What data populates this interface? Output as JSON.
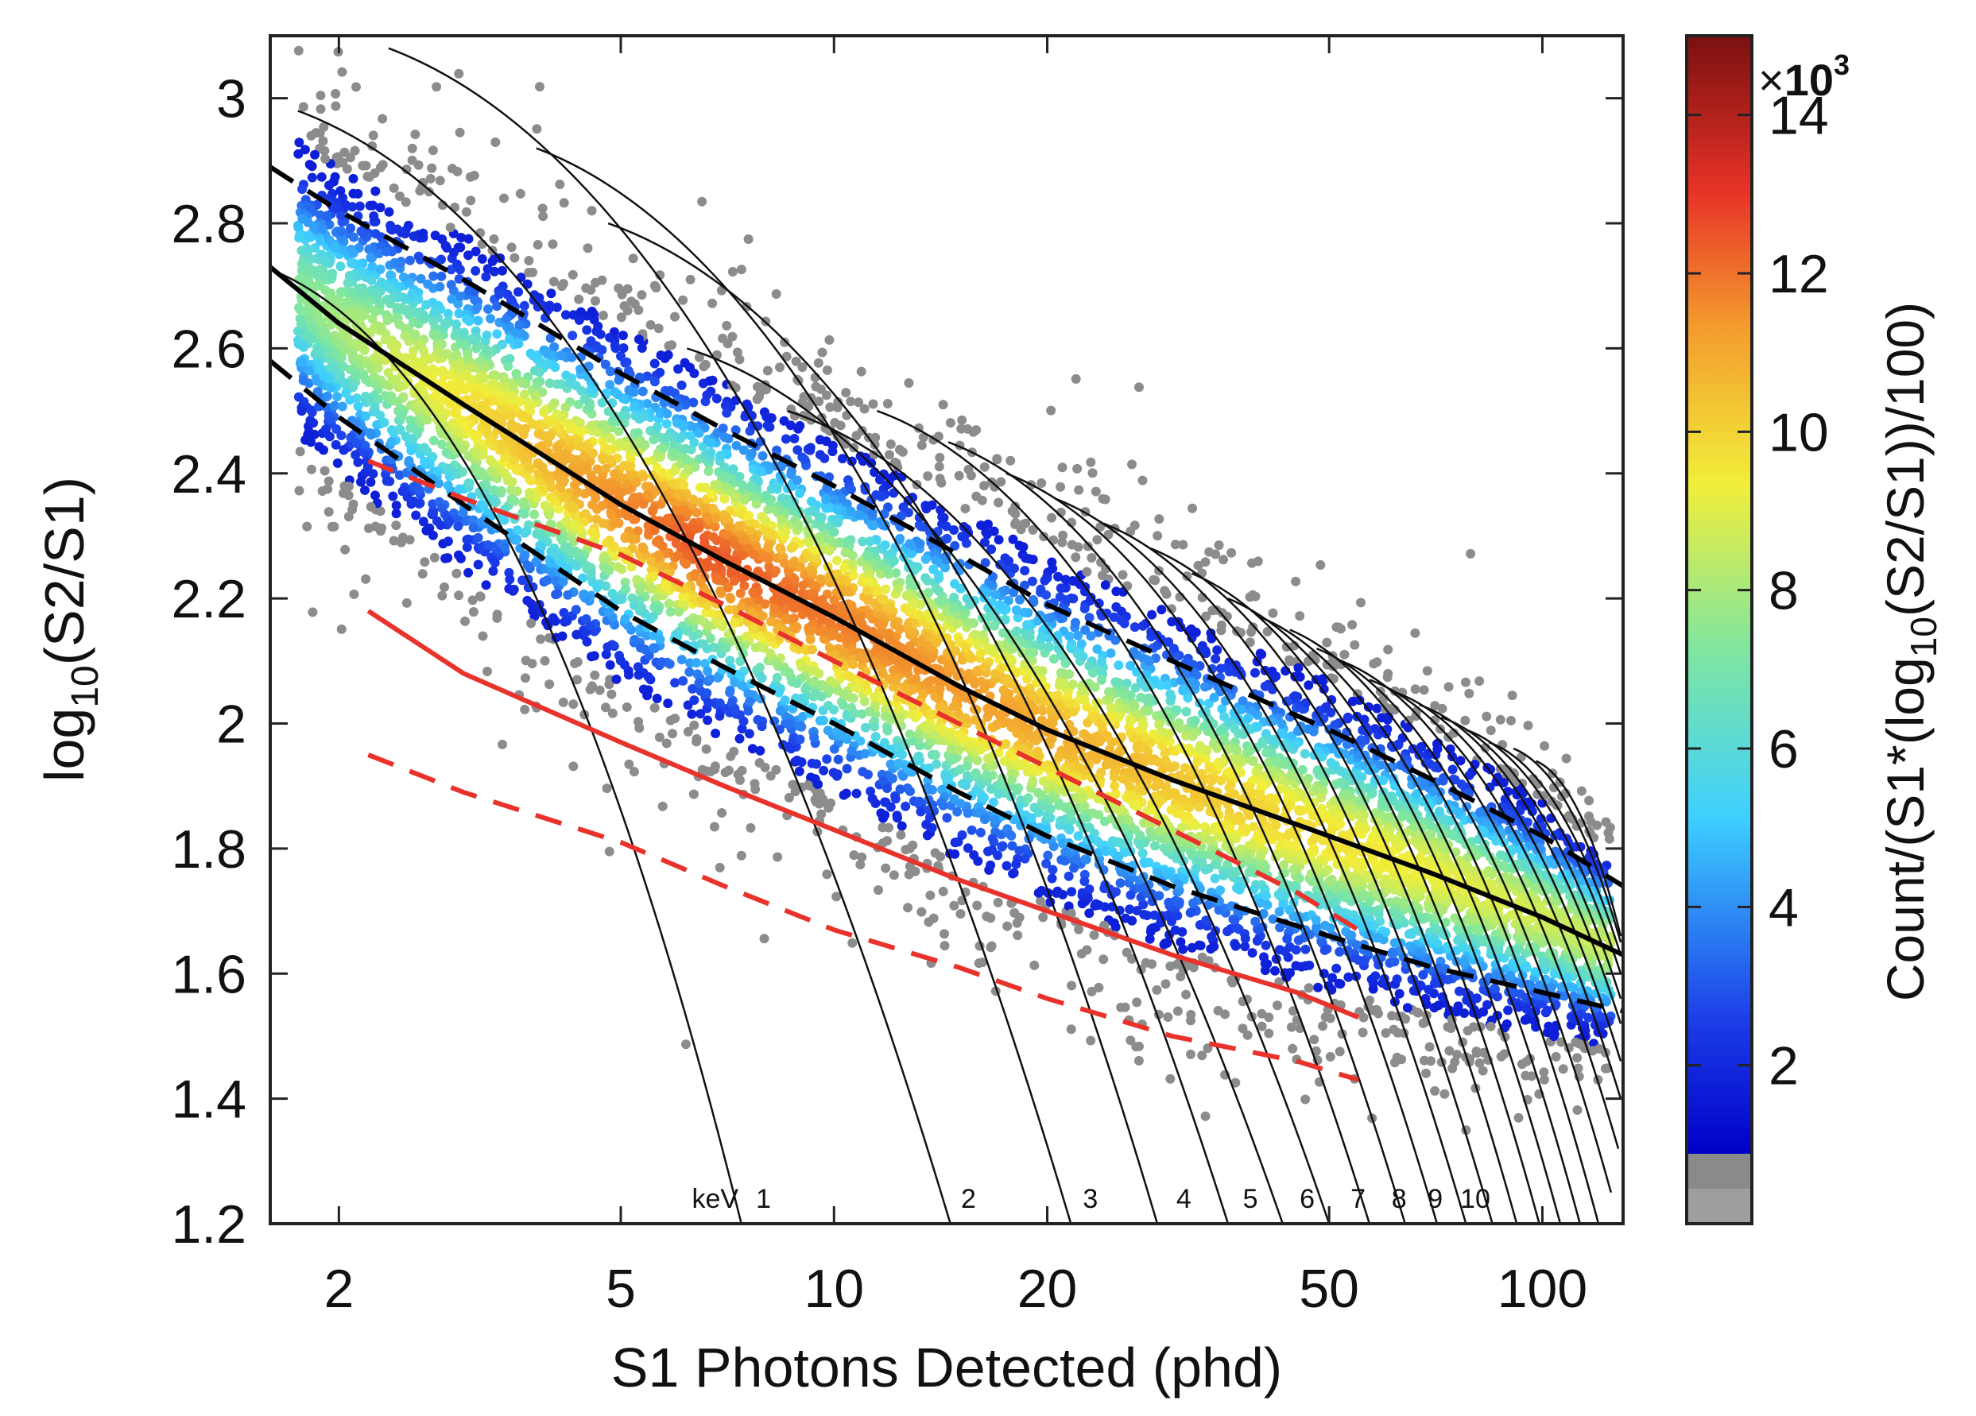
{
  "chart_data": {
    "type": "scatter",
    "subtype": "2D density scatter (log10(S2/S1) vs S1) with energy contours",
    "xlabel": "S1 Photons Detected (phd)",
    "ylabel_main": "log",
    "ylabel_sub": "10",
    "ylabel_tail": "(S2/S1)",
    "x_scale": "log",
    "xlim": [
      1.6,
      130
    ],
    "ylim": [
      1.2,
      3.1
    ],
    "x_ticks": [
      2,
      5,
      10,
      20,
      50,
      100
    ],
    "x_tick_labels": [
      "2",
      "5",
      "10",
      "20",
      "50",
      "100"
    ],
    "y_ticks": [
      1.2,
      1.4,
      1.6,
      1.8,
      2.0,
      2.2,
      2.4,
      2.6,
      2.8,
      3.0
    ],
    "y_tick_labels": [
      "1.2",
      "1.4",
      "1.6",
      "1.8",
      "2",
      "2.2",
      "2.4",
      "2.6",
      "2.8",
      "3"
    ],
    "energy_contours": {
      "unit_label": "keV",
      "labels": [
        "1",
        "2",
        "3",
        "4",
        "5",
        "6",
        "7",
        "8",
        "9",
        "10"
      ],
      "label_s1": [
        7.6,
        14.8,
        22.0,
        29.8,
        37.0,
        44.5,
        52.5,
        60.0,
        67.5,
        75.0
      ],
      "top_s1": [
        1.65,
        1.75,
        2.35,
        3.8,
        4.8,
        6.2,
        8.6,
        11.5,
        14.5,
        17.5,
        20.5,
        24.0,
        28.0,
        32.0,
        36.0,
        40.0,
        44.0,
        48.0,
        52.0,
        57.0,
        62.0,
        67.0,
        72.0,
        78.0,
        84.0,
        91.0,
        98.0
      ],
      "top_log": [
        2.72,
        2.98,
        3.08,
        2.92,
        2.8,
        2.6,
        2.5,
        2.5,
        2.45,
        2.4,
        2.36,
        2.32,
        2.28,
        2.24,
        2.2,
        2.17,
        2.15,
        2.12,
        2.1,
        2.07,
        2.05,
        2.03,
        2.01,
        1.99,
        1.97,
        1.96,
        1.94
      ],
      "bottom_s1": [
        7.4,
        14.6,
        21.6,
        28.6,
        36.0,
        43.0,
        50.0,
        57.0,
        64.0,
        71.0,
        78.0,
        85.0,
        92.0,
        99.0,
        106.0,
        113.0,
        120.0,
        125.0,
        128.0,
        129.0,
        129.0,
        129.0,
        129.0,
        129.0,
        129.0,
        129.0,
        129.0
      ],
      "bottom_log": [
        1.2,
        1.2,
        1.2,
        1.2,
        1.2,
        1.2,
        1.2,
        1.2,
        1.2,
        1.2,
        1.2,
        1.2,
        1.2,
        1.2,
        1.2,
        1.2,
        1.2,
        1.25,
        1.32,
        1.4,
        1.46,
        1.52,
        1.56,
        1.6,
        1.63,
        1.65,
        1.66
      ]
    },
    "series": [
      {
        "name": "ER band median (black solid)",
        "style": "solid",
        "color": "#000000",
        "x": [
          1.6,
          2,
          3,
          5,
          7,
          10,
          15,
          20,
          30,
          50,
          70,
          100,
          130
        ],
        "y": [
          2.73,
          2.64,
          2.51,
          2.35,
          2.26,
          2.17,
          2.06,
          1.99,
          1.91,
          1.82,
          1.76,
          1.69,
          1.63
        ]
      },
      {
        "name": "ER band upper 90% (black dashed)",
        "style": "dashed",
        "color": "#000000",
        "x": [
          1.6,
          2,
          3,
          5,
          7,
          10,
          15,
          20,
          30,
          50,
          70,
          100,
          130
        ],
        "y": [
          2.89,
          2.82,
          2.71,
          2.56,
          2.47,
          2.38,
          2.27,
          2.19,
          2.1,
          1.99,
          1.91,
          1.82,
          1.74
        ]
      },
      {
        "name": "ER band lower 10% (black dashed)",
        "style": "dashed",
        "color": "#000000",
        "x": [
          1.6,
          2,
          3,
          5,
          7,
          10,
          15,
          20,
          30,
          50,
          70,
          100,
          130
        ],
        "y": [
          2.58,
          2.49,
          2.35,
          2.18,
          2.09,
          2.0,
          1.89,
          1.82,
          1.74,
          1.66,
          1.61,
          1.57,
          1.54
        ]
      },
      {
        "name": "NR band median (red solid)",
        "style": "solid",
        "color": "#e8322b",
        "x": [
          2.2,
          3,
          5,
          7,
          10,
          15,
          20,
          30,
          45,
          55
        ],
        "y": [
          2.18,
          2.08,
          1.97,
          1.9,
          1.83,
          1.75,
          1.7,
          1.63,
          1.57,
          1.53
        ]
      },
      {
        "name": "NR band upper (red dashed)",
        "style": "dashed",
        "color": "#e8322b",
        "x": [
          2.2,
          3,
          5,
          7,
          10,
          15,
          20,
          30,
          45,
          55
        ],
        "y": [
          2.42,
          2.36,
          2.27,
          2.19,
          2.1,
          2.0,
          1.93,
          1.83,
          1.73,
          1.67
        ]
      },
      {
        "name": "NR band lower (red dashed)",
        "style": "dashed",
        "color": "#e8322b",
        "x": [
          2.2,
          3,
          5,
          7,
          10,
          15,
          20,
          30,
          45,
          55
        ],
        "y": [
          1.95,
          1.89,
          1.81,
          1.74,
          1.67,
          1.61,
          1.56,
          1.5,
          1.46,
          1.43
        ]
      }
    ],
    "colorbar": {
      "title": "Count/(S1*(log",
      "title_sub": "10",
      "title_tail": "(S2/S1))/100)",
      "multiplier_times": "×",
      "multiplier_base": "10",
      "multiplier_exp": "3",
      "ticks": [
        2,
        4,
        6,
        8,
        10,
        12,
        14
      ],
      "tick_labels": [
        "2",
        "4",
        "6",
        "8",
        "10",
        "12",
        "14"
      ],
      "range": [
        0,
        15
      ],
      "gray_levels_below": 1
    }
  }
}
